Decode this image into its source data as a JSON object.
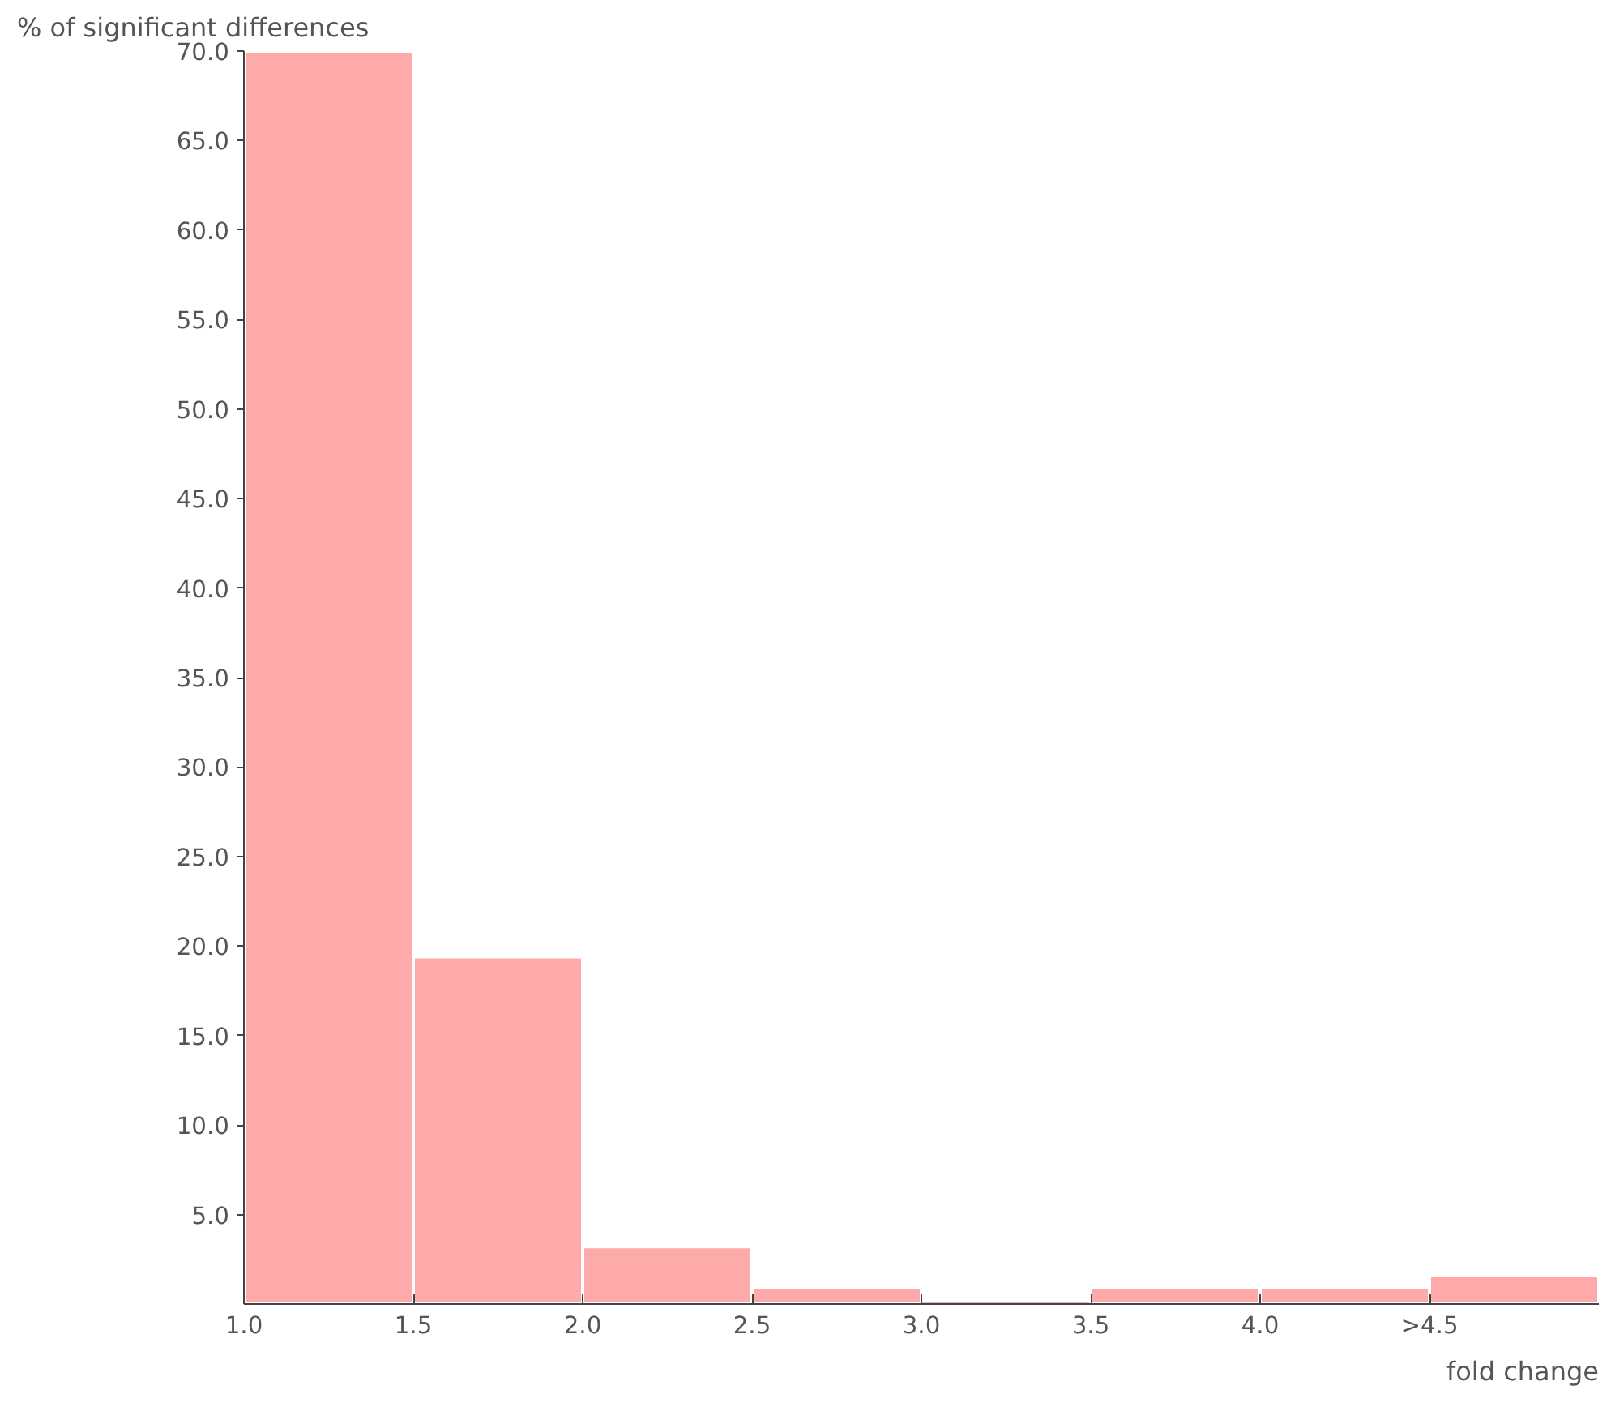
{
  "chart_data": {
    "type": "histogram",
    "ylabel": "% of significant differences",
    "xlabel": "fold change",
    "bins": [
      1.0,
      1.5,
      2.0,
      2.5,
      3.0,
      3.5,
      4.0,
      4.5,
      5.0
    ],
    "values": [
      70.0,
      19.4,
      3.2,
      0.9,
      0,
      0.9,
      0.9,
      1.6
    ],
    "color": "#ffaaaa",
    "xlim": [
      1.0,
      5.0
    ],
    "ylim": [
      0,
      70
    ],
    "xticks": [
      {
        "value": 1.0,
        "label": "1.0"
      },
      1.5,
      {
        "value": 2.0,
        "label": "2.0"
      },
      2.5,
      {
        "value": 3.0,
        "label": "3.0"
      },
      3.5,
      {
        "value": 4.0,
        "label": "4.0"
      },
      {
        "value": 4.5,
        "label": ">4.5"
      }
    ],
    "yticks": [
      {
        "value": 5,
        "label": "5.0"
      },
      {
        "value": 10,
        "label": "10.0"
      },
      {
        "value": 15,
        "label": "15.0"
      },
      {
        "value": 20,
        "label": "20.0"
      },
      {
        "value": 25,
        "label": "25.0"
      },
      {
        "value": 30,
        "label": "30.0"
      },
      {
        "value": 35,
        "label": "35.0"
      },
      {
        "value": 40,
        "label": "40.0"
      },
      {
        "value": 45,
        "label": "45.0"
      },
      {
        "value": 50,
        "label": "50.0"
      },
      {
        "value": 55,
        "label": "55.0"
      },
      {
        "value": 60,
        "label": "60.0"
      },
      {
        "value": 65,
        "label": "65.0"
      },
      {
        "value": 70,
        "label": "70.0"
      }
    ],
    "grid": false
  }
}
